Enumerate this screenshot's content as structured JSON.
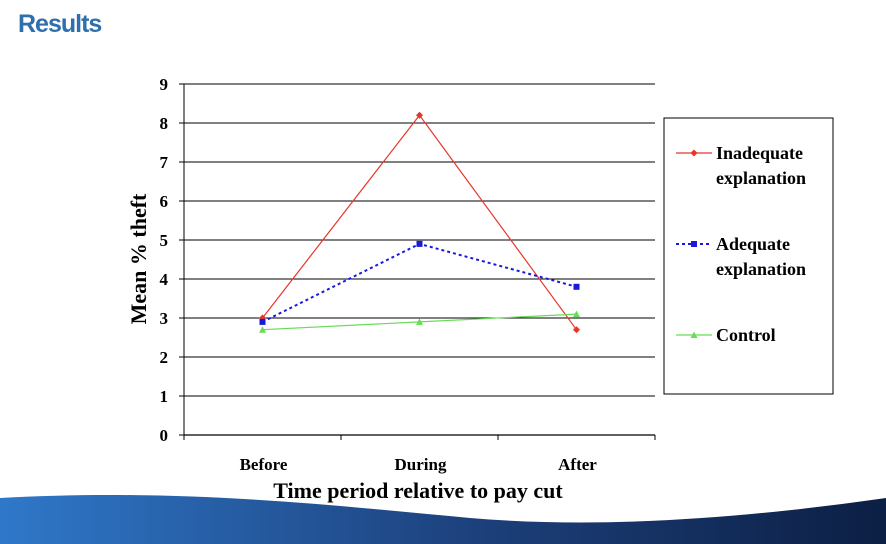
{
  "slide": {
    "title": "Results"
  },
  "chart_data": {
    "type": "line",
    "title": "",
    "xlabel": "Time period relative to pay cut",
    "ylabel": "Mean % theft",
    "categories": [
      "Before",
      "During",
      "After"
    ],
    "ylim": [
      0,
      9
    ],
    "yticks": [
      "0",
      "1",
      "2",
      "3",
      "4",
      "5",
      "6",
      "7",
      "8",
      "9"
    ],
    "grid": true,
    "legend_position": "right",
    "series": [
      {
        "name": "Inadequate explanation",
        "legend_lines": [
          "Inadequate",
          "explanation"
        ],
        "values": [
          3.0,
          8.2,
          2.7
        ],
        "color": "#e8352a",
        "marker": "diamond",
        "dash": "solid"
      },
      {
        "name": "Adequate explanation",
        "legend_lines": [
          "Adequate",
          "explanation"
        ],
        "values": [
          2.9,
          4.9,
          3.8
        ],
        "color": "#1a1adb",
        "marker": "square",
        "dash": "dotted"
      },
      {
        "name": "Control",
        "legend_lines": [
          "Control"
        ],
        "values": [
          2.7,
          2.9,
          3.1
        ],
        "color": "#66dd55",
        "marker": "triangle",
        "dash": "solid"
      }
    ]
  }
}
